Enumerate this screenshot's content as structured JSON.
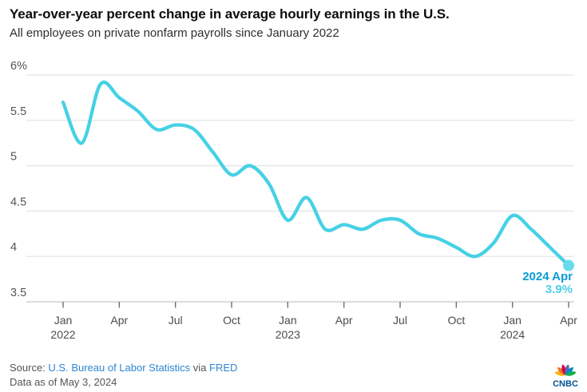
{
  "header": {
    "title": "Year-over-year percent change in average hourly earnings in the U.S.",
    "subtitle": "All employees on private nonfarm payrolls since January 2022"
  },
  "chart_data": {
    "type": "line",
    "title": "Year-over-year percent change in average hourly earnings in the U.S.",
    "subtitle": "All employees on private nonfarm payrolls since January 2022",
    "series_name": "YoY % change in average hourly earnings",
    "x": [
      "Jan 2022",
      "Feb 2022",
      "Mar 2022",
      "Apr 2022",
      "May 2022",
      "Jun 2022",
      "Jul 2022",
      "Aug 2022",
      "Sep 2022",
      "Oct 2022",
      "Nov 2022",
      "Dec 2022",
      "Jan 2023",
      "Feb 2023",
      "Mar 2023",
      "Apr 2023",
      "May 2023",
      "Jun 2023",
      "Jul 2023",
      "Aug 2023",
      "Sep 2023",
      "Oct 2023",
      "Nov 2023",
      "Dec 2023",
      "Jan 2024",
      "Feb 2024",
      "Mar 2024",
      "Apr 2024"
    ],
    "values": [
      5.7,
      5.25,
      5.9,
      5.75,
      5.6,
      5.4,
      5.45,
      5.4,
      5.15,
      4.9,
      5.0,
      4.8,
      4.4,
      4.65,
      4.3,
      4.35,
      4.3,
      4.4,
      4.4,
      4.25,
      4.2,
      4.1,
      4.0,
      4.15,
      4.45,
      4.3,
      4.1,
      3.9
    ],
    "ylim": [
      3.5,
      6.0
    ],
    "grid": true,
    "legend": false,
    "y_ticks": [
      {
        "label": "6%",
        "value": 6.0
      },
      {
        "label": "5.5",
        "value": 5.5
      },
      {
        "label": "5",
        "value": 5.0
      },
      {
        "label": "4.5",
        "value": 4.5
      },
      {
        "label": "4",
        "value": 4.0
      },
      {
        "label": "3.5",
        "value": 3.5
      }
    ],
    "x_ticks": [
      {
        "index": 0,
        "label": "Jan",
        "year": "2022"
      },
      {
        "index": 3,
        "label": "Apr"
      },
      {
        "index": 6,
        "label": "Jul"
      },
      {
        "index": 9,
        "label": "Oct"
      },
      {
        "index": 12,
        "label": "Jan",
        "year": "2023"
      },
      {
        "index": 15,
        "label": "Apr"
      },
      {
        "index": 18,
        "label": "Jul"
      },
      {
        "index": 21,
        "label": "Oct"
      },
      {
        "index": 24,
        "label": "Jan",
        "year": "2024"
      },
      {
        "index": 27,
        "label": "Apr"
      }
    ],
    "line_color": "#46d1e5",
    "dot_color": "#67dbeb",
    "gridline_color": "#e4e4e6",
    "axis_line_color": "#c7c7ca",
    "annotation": {
      "line1": "2024 Apr",
      "line2": "3.9%",
      "color1": "#0a9cd8",
      "color2": "#4ecfe9"
    }
  },
  "footer": {
    "source_prefix": "Source: ",
    "source_link1": "U.S. Bureau of Labor Statistics",
    "source_middle": " via ",
    "source_link2": "FRED",
    "data_as_of": "Data as of May 3, 2024",
    "logo_text": "CNBC",
    "peacock_colors": [
      "#fcb711",
      "#f37021",
      "#cc004c",
      "#6460aa",
      "#0089d0",
      "#0db14b"
    ]
  }
}
